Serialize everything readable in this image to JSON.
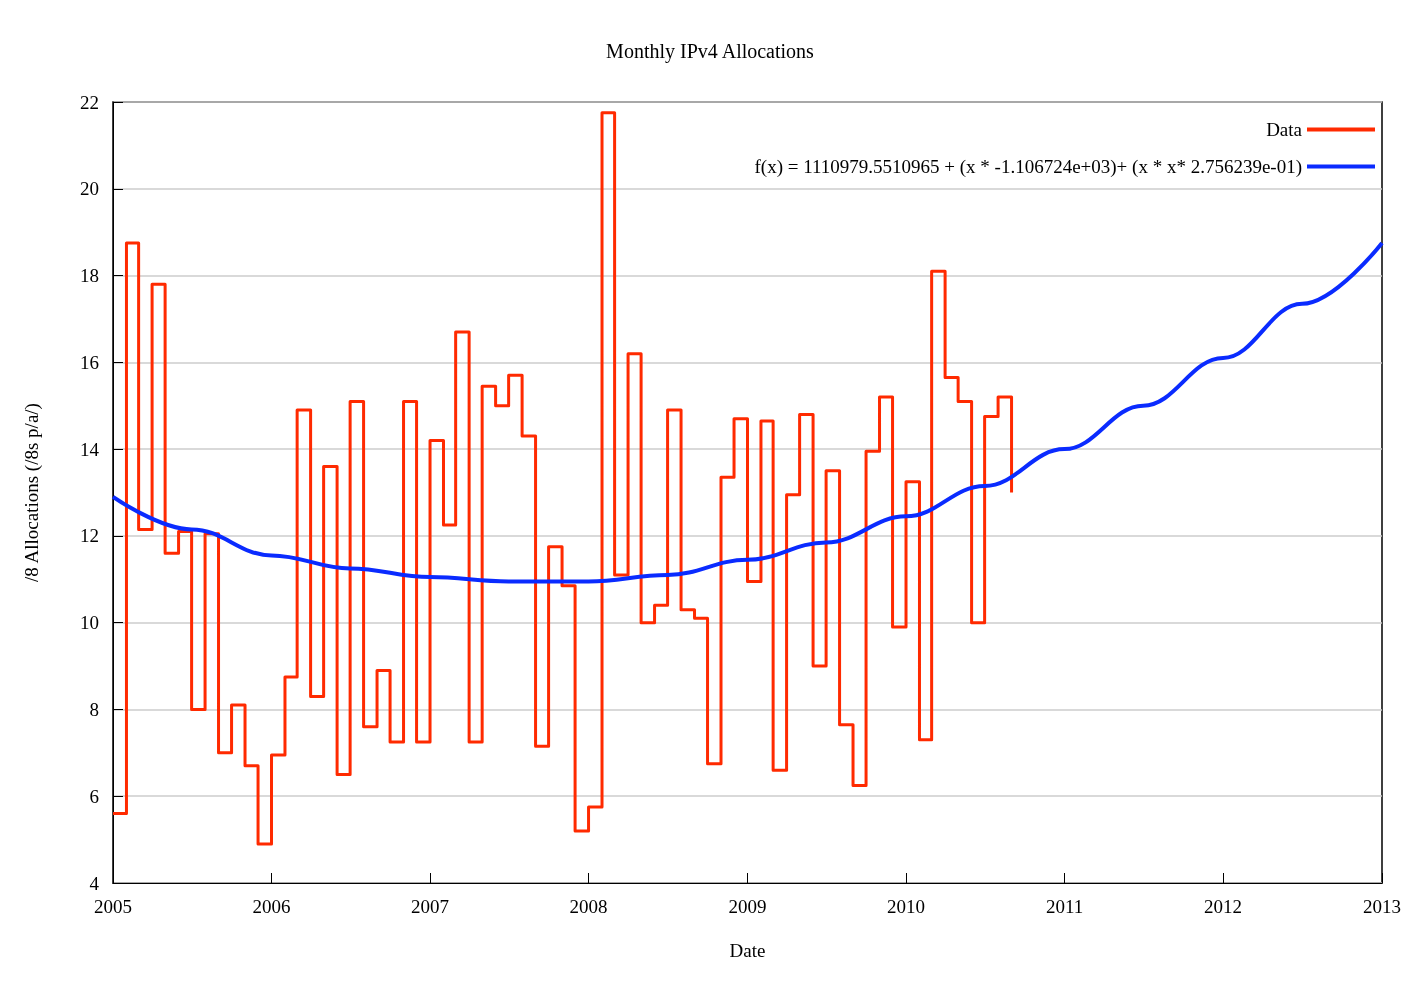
{
  "chart_data": {
    "type": "step",
    "title": "Monthly IPv4 Allocations",
    "xlabel": "Date",
    "ylabel": "/8 Allocations (/8s p/a/)",
    "x": [
      "2005-01",
      "2005-02",
      "2005-03",
      "2005-04",
      "2005-05",
      "2005-06",
      "2005-07",
      "2005-08",
      "2005-09",
      "2005-10",
      "2005-11",
      "2005-12",
      "2006-01",
      "2006-02",
      "2006-03",
      "2006-04",
      "2006-05",
      "2006-06",
      "2006-07",
      "2006-08",
      "2006-09",
      "2006-10",
      "2006-11",
      "2006-12",
      "2007-01",
      "2007-02",
      "2007-03",
      "2007-04",
      "2007-05",
      "2007-06",
      "2007-07",
      "2007-08",
      "2007-09",
      "2007-10",
      "2007-11",
      "2007-12",
      "2008-01",
      "2008-02",
      "2008-03",
      "2008-04",
      "2008-05",
      "2008-06",
      "2008-07",
      "2008-08",
      "2008-09",
      "2008-10",
      "2008-11",
      "2008-12",
      "2009-01",
      "2009-02",
      "2009-03",
      "2009-04",
      "2009-05",
      "2009-06",
      "2009-07",
      "2009-08",
      "2009-09",
      "2009-10",
      "2009-11",
      "2009-12",
      "2010-01",
      "2010-02",
      "2010-03",
      "2010-04",
      "2010-05",
      "2010-06",
      "2010-07",
      "2010-08",
      "2010-09"
    ],
    "series": [
      {
        "name": "Data",
        "color": "#ff2a00",
        "values": [
          5.6,
          18.75,
          12.15,
          17.8,
          11.6,
          12.1,
          8.0,
          12.05,
          7.0,
          8.1,
          6.7,
          4.9,
          6.95,
          8.75,
          14.9,
          8.3,
          13.6,
          6.5,
          15.1,
          7.6,
          8.9,
          7.25,
          15.1,
          7.25,
          14.2,
          12.25,
          16.7,
          7.25,
          15.45,
          15.0,
          15.7,
          14.3,
          7.15,
          11.75,
          10.85,
          5.2,
          5.75,
          21.75,
          11.1,
          16.2,
          10.0,
          10.4,
          14.9,
          10.3,
          10.1,
          6.75,
          13.35,
          14.7,
          10.95,
          14.65,
          6.6,
          12.95,
          14.8,
          9.0,
          13.5,
          7.65,
          6.25,
          13.95,
          15.2,
          9.9,
          13.25,
          7.3,
          18.1,
          15.65,
          15.1,
          10.0,
          14.75,
          15.2,
          13.0
        ]
      },
      {
        "name": "f(x) = 1110979.5510965 + (x * -1.106724e+03)+ (x * x* 2.756239e-01)",
        "type": "line",
        "color": "#0a2bff",
        "x": [
          "2005",
          "2005-07",
          "2006",
          "2006-07",
          "2007",
          "2007-07",
          "2008",
          "2008-07",
          "2009",
          "2009-07",
          "2010",
          "2010-07",
          "2011",
          "2011-07",
          "2012",
          "2012-07",
          "2013"
        ],
        "values": [
          12.9,
          12.15,
          11.55,
          11.25,
          11.05,
          10.95,
          10.95,
          11.1,
          11.45,
          11.85,
          12.45,
          13.15,
          14.0,
          15.0,
          16.1,
          17.35,
          18.75
        ]
      }
    ],
    "xlim": [
      "2005",
      "2013"
    ],
    "xticks": [
      "2005",
      "2006",
      "2007",
      "2008",
      "2009",
      "2010",
      "2011",
      "2012",
      "2013"
    ],
    "ylim": [
      4,
      22
    ],
    "yticks": [
      4,
      6,
      8,
      10,
      12,
      14,
      16,
      18,
      20,
      22
    ],
    "grid": "y",
    "legend": "top right",
    "marker": "none"
  }
}
